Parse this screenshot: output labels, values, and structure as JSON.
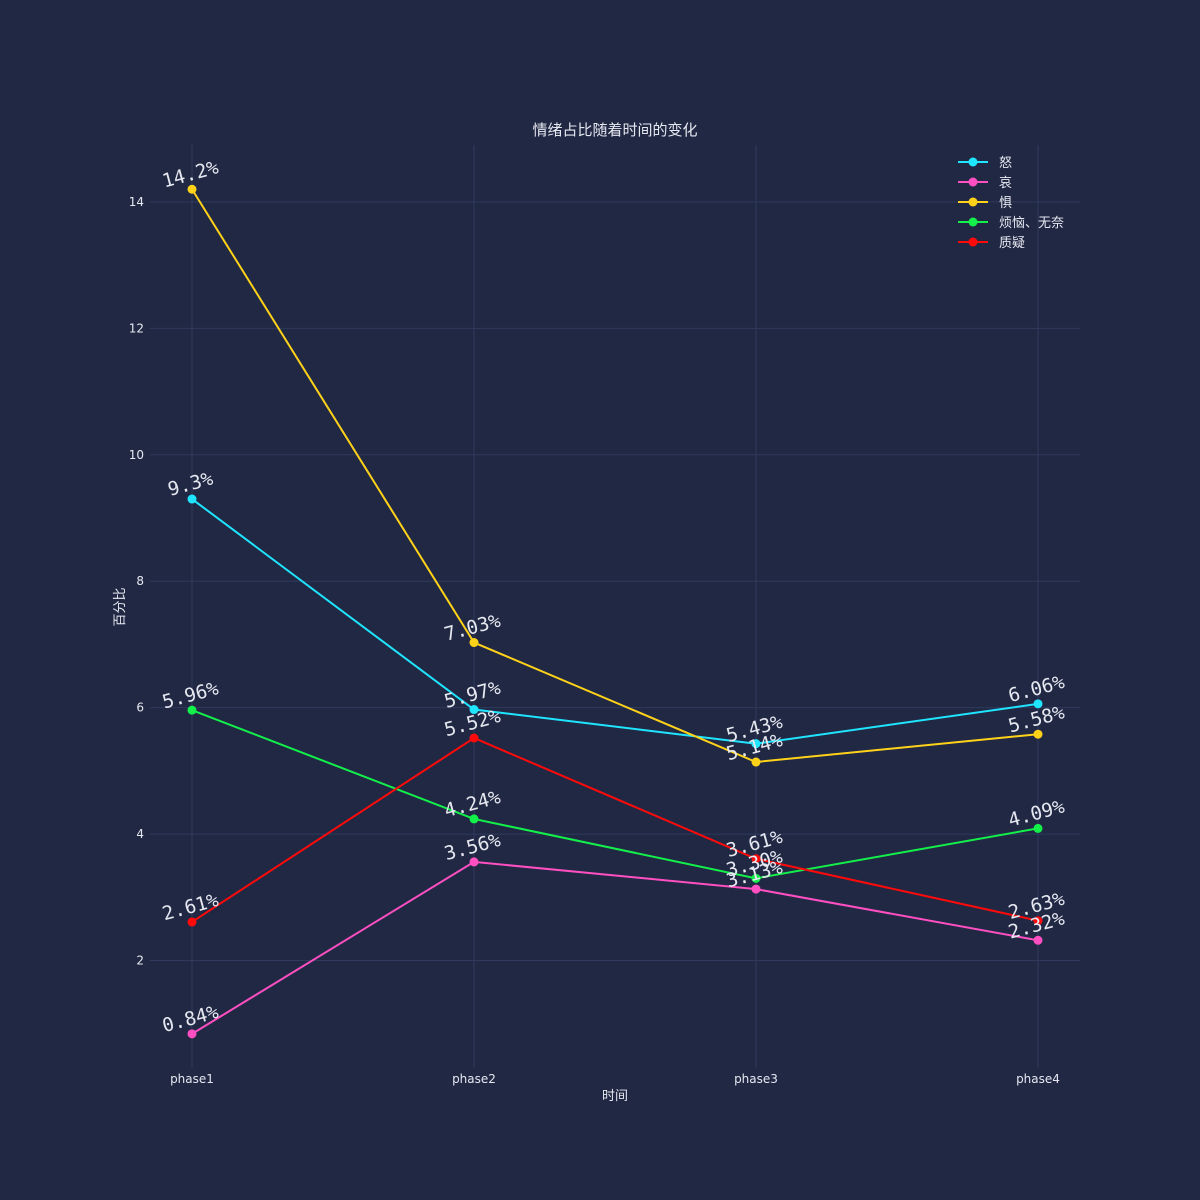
{
  "chart_data": {
    "type": "line",
    "title": "情绪占比随着时间的变化",
    "xlabel": "时间",
    "ylabel": "百分比",
    "categories": [
      "phase1",
      "phase2",
      "phase3",
      "phase4"
    ],
    "ylim": [
      0.3,
      14.9
    ],
    "yticks": [
      2,
      4,
      6,
      8,
      10,
      12,
      14
    ],
    "grid": true,
    "legend_position": "top-right",
    "background_color": "#212844",
    "series": [
      {
        "name": "怒",
        "color": "#1fe5ff",
        "values": [
          9.3,
          5.97,
          5.43,
          6.06
        ],
        "labels": [
          "9.3%",
          "5.97%",
          "5.43%",
          "6.06%"
        ]
      },
      {
        "name": "哀",
        "color": "#ff4fc1",
        "values": [
          0.84,
          3.56,
          3.13,
          2.32
        ],
        "labels": [
          "0.84%",
          "3.56%",
          "3.13%",
          "2.32%"
        ]
      },
      {
        "name": "惧",
        "color": "#ffd21a",
        "values": [
          14.2,
          7.03,
          5.14,
          5.58
        ],
        "labels": [
          "14.2%",
          "7.03%",
          "5.14%",
          "5.58%"
        ]
      },
      {
        "name": "烦恼、无奈",
        "color": "#13f04a",
        "values": [
          5.96,
          4.24,
          3.3,
          4.09
        ],
        "labels": [
          "5.96%",
          "4.24%",
          "3.30%",
          "4.09%"
        ]
      },
      {
        "name": "质疑",
        "color": "#ff0a0a",
        "values": [
          2.61,
          5.52,
          3.61,
          2.63
        ],
        "labels": [
          "2.61%",
          "5.52%",
          "3.61%",
          "2.63%"
        ]
      }
    ]
  }
}
